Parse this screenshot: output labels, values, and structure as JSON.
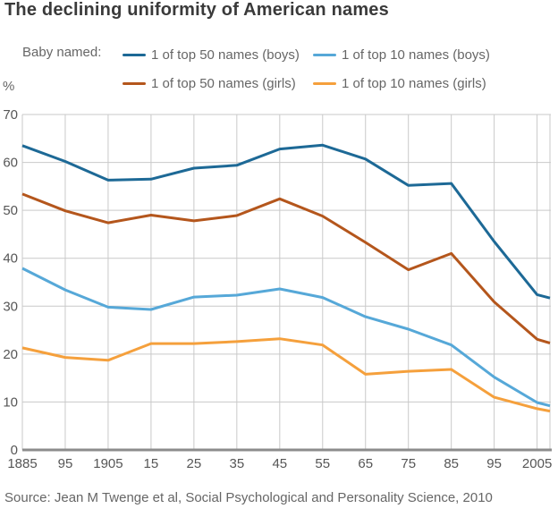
{
  "title": "The declining uniformity of American names",
  "legend": {
    "prefix": "Baby named:",
    "items": [
      {
        "label": "1 of top 50 names (boys)",
        "color": "#1d6996"
      },
      {
        "label": "1 of top 10 names (boys)",
        "color": "#56a8d8"
      },
      {
        "label": "1 of top 50 names (girls)",
        "color": "#b4561c"
      },
      {
        "label": "1 of top 10 names (girls)",
        "color": "#f5a03c"
      }
    ]
  },
  "y_axis_unit": "%",
  "source": "Source: Jean M Twenge et al, Social Psychological and Personality Science, 2010",
  "colors": {
    "grid": "#c9c9c9",
    "axis": "#8c8c8c",
    "tick_text": "#565656"
  },
  "chart_data": {
    "type": "line",
    "title": "The declining uniformity of American names",
    "ylabel": "%",
    "ylim": [
      0,
      70
    ],
    "y_ticks": [
      0,
      10,
      20,
      30,
      40,
      50,
      60,
      70
    ],
    "grid": true,
    "legend_position": "top",
    "x": [
      1885,
      1895,
      1905,
      1915,
      1925,
      1935,
      1945,
      1955,
      1965,
      1975,
      1985,
      1995,
      2005,
      2008
    ],
    "x_tick_years": [
      1885,
      1895,
      1905,
      1915,
      1925,
      1935,
      1945,
      1955,
      1965,
      1975,
      1985,
      1995,
      2005
    ],
    "x_tick_labels": [
      "1885",
      "95",
      "1905",
      "15",
      "25",
      "35",
      "45",
      "55",
      "65",
      "75",
      "85",
      "95",
      "2005"
    ],
    "series": [
      {
        "name": "1 of top 50 names (boys)",
        "color": "#1d6996",
        "values": [
          63.5,
          60.2,
          56.3,
          56.5,
          58.8,
          59.4,
          62.8,
          63.6,
          60.7,
          55.2,
          55.6,
          43.5,
          32.4,
          31.7
        ]
      },
      {
        "name": "1 of top 50 names (girls)",
        "color": "#b4561c",
        "values": [
          53.4,
          49.9,
          47.4,
          49.0,
          47.8,
          48.9,
          52.4,
          48.8,
          43.3,
          37.6,
          41.0,
          30.9,
          23.1,
          22.3
        ]
      },
      {
        "name": "1 of top 10 names (boys)",
        "color": "#56a8d8",
        "values": [
          37.9,
          33.4,
          29.8,
          29.3,
          31.9,
          32.3,
          33.6,
          31.8,
          27.8,
          25.2,
          21.9,
          15.2,
          9.9,
          9.2
        ]
      },
      {
        "name": "1 of top 10 names (girls)",
        "color": "#f5a03c",
        "values": [
          21.3,
          19.3,
          18.7,
          22.2,
          22.2,
          22.6,
          23.2,
          21.9,
          15.8,
          16.4,
          16.8,
          11.0,
          8.6,
          8.1
        ]
      }
    ]
  }
}
